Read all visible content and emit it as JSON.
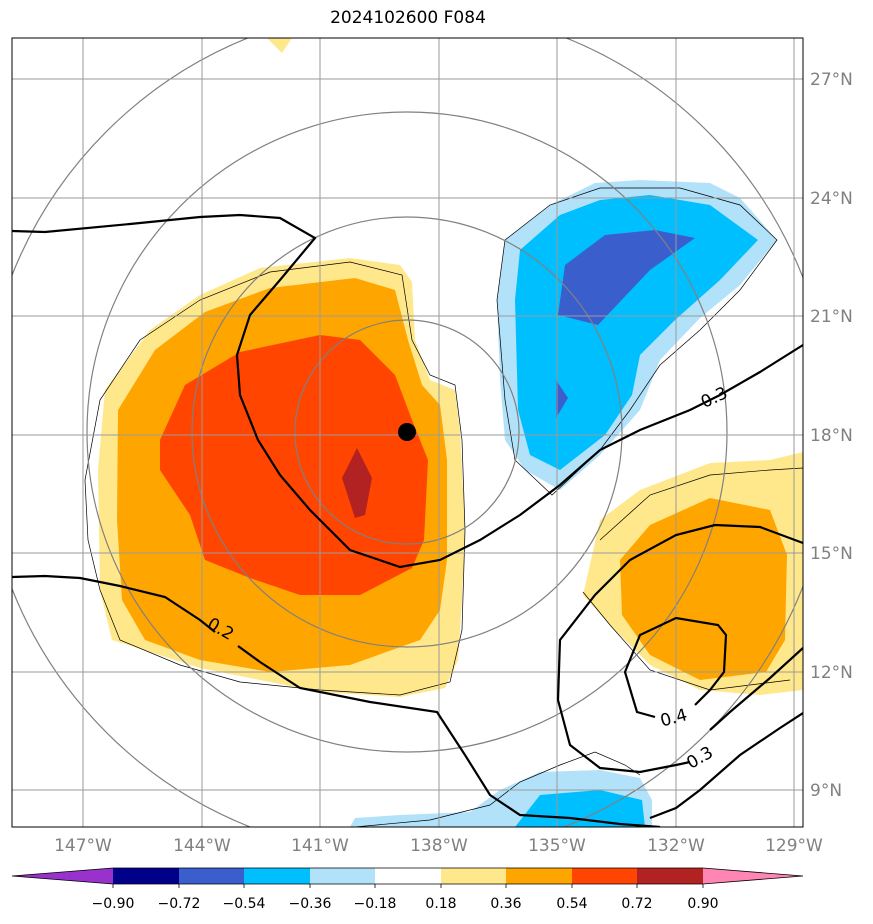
{
  "title": "2024102600 F084",
  "latitude_labels": [
    "27°N",
    "24°N",
    "21°N",
    "18°N",
    "15°N",
    "12°N",
    "9°N"
  ],
  "longitude_labels": [
    "147°W",
    "144°W",
    "141°W",
    "138°W",
    "135°W",
    "132°W",
    "129°W"
  ],
  "colorbar": {
    "tick_labels": [
      "−0.90",
      "−0.72",
      "−0.54",
      "−0.36",
      "−0.18",
      "0.18",
      "0.36",
      "0.54",
      "0.72",
      "0.90"
    ],
    "colors": [
      "#9932cc",
      "#00008b",
      "#3a5fcd",
      "#00bfff",
      "#b2e2fa",
      "#ffffff",
      "#ffe88c",
      "#ffa500",
      "#ff4500",
      "#b22222",
      "#ff85b4"
    ]
  },
  "contour_labels": [
    "0.3",
    "0.2",
    "0.4",
    "0.3"
  ],
  "colors": {
    "grid": "#9a9a9a",
    "range_rings": "#808080",
    "contour": "#000000",
    "storm_center": "#000000"
  }
}
